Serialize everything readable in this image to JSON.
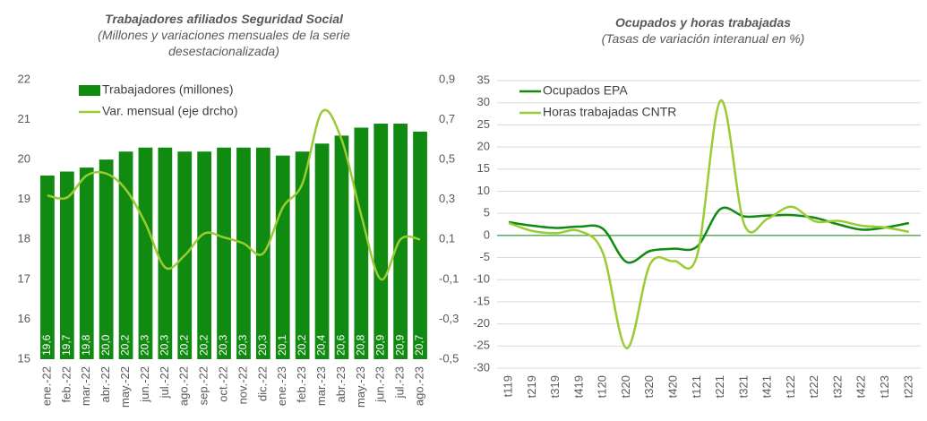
{
  "chart_data": [
    {
      "type": "bar",
      "title": "Trabajadores afiliados Seguridad Social",
      "subtitle": "(Millones y variaciones mensuales de la serie desestacionalizada)",
      "categories": [
        "ene.-22",
        "feb.-22",
        "mar.-22",
        "abr.-22",
        "may.-22",
        "jun.-22",
        "jul.-22",
        "ago.-22",
        "sep.-22",
        "oct.-22",
        "nov.-22",
        "dic.-22",
        "ene.-23",
        "feb.-23",
        "mar.-23",
        "abr.-23",
        "may.-23",
        "jun.-23",
        "jul.-23",
        "ago.-23"
      ],
      "series": [
        {
          "name": "Trabajadores (millones)",
          "color": "#108a10",
          "values": [
            19.6,
            19.7,
            19.8,
            20.0,
            20.2,
            20.3,
            20.3,
            20.2,
            20.2,
            20.3,
            20.3,
            20.3,
            20.1,
            20.2,
            20.4,
            20.6,
            20.8,
            20.9,
            20.9,
            20.7
          ],
          "value_labels": [
            "19,6",
            "19,7",
            "19,8",
            "20,0",
            "20,2",
            "20,3",
            "20,3",
            "20,2",
            "20,2",
            "20,3",
            "20,3",
            "20,3",
            "20,1",
            "20,2",
            "20,4",
            "20,6",
            "20,8",
            "20,9",
            "20,9",
            "20,7"
          ]
        },
        {
          "name": "Var. mensual (eje drcho)",
          "color": "#99cc33",
          "axis": "y2",
          "values": [
            0.32,
            0.31,
            0.42,
            0.43,
            0.35,
            0.18,
            -0.04,
            0.02,
            0.13,
            0.11,
            0.08,
            0.03,
            0.26,
            0.38,
            0.74,
            0.6,
            0.22,
            -0.1,
            0.1,
            0.1
          ]
        }
      ],
      "ylim": [
        15,
        22
      ],
      "yticks": [
        15,
        16,
        17,
        18,
        19,
        20,
        21,
        22
      ],
      "y2lim": [
        -0.5,
        0.9
      ],
      "y2ticks": [
        {
          "value": -0.5,
          "label": "-0,5"
        },
        {
          "value": -0.3,
          "label": "-0,3"
        },
        {
          "value": -0.1,
          "label": "-0,1"
        },
        {
          "value": 0.1,
          "label": "0,1"
        },
        {
          "value": 0.3,
          "label": "0,3"
        },
        {
          "value": 0.5,
          "label": "0,5"
        },
        {
          "value": 0.7,
          "label": "0,7"
        },
        {
          "value": 0.9,
          "label": "0,9"
        }
      ],
      "grid": false,
      "legend": "upper left"
    },
    {
      "type": "line",
      "title": "Ocupados y horas trabajadas",
      "subtitle": "(Tasas de variación interanual en %)",
      "categories": [
        "t119",
        "t219",
        "t319",
        "t419",
        "t120",
        "t220",
        "t320",
        "t420",
        "t121",
        "t221",
        "t321",
        "t421",
        "t122",
        "t222",
        "t322",
        "t422",
        "t123",
        "t223"
      ],
      "series": [
        {
          "name": "Ocupados EPA",
          "color": "#108a10",
          "values": [
            3.0,
            2.2,
            1.7,
            2.0,
            1.5,
            -6.0,
            -3.5,
            -3.0,
            -2.5,
            6.0,
            4.3,
            4.5,
            4.6,
            4.0,
            2.5,
            1.3,
            1.8,
            2.8
          ]
        },
        {
          "name": "Horas trabajadas CNTR",
          "color": "#99cc33",
          "values": [
            2.8,
            1.0,
            0.5,
            1.0,
            -4.0,
            -25.5,
            -6.5,
            -5.8,
            -4.5,
            30.5,
            2.5,
            3.8,
            6.5,
            3.2,
            3.3,
            2.2,
            1.8,
            0.8
          ]
        }
      ],
      "ylim": [
        -30,
        35
      ],
      "yticks": [
        -30,
        -25,
        -20,
        -15,
        -10,
        -5,
        0,
        5,
        10,
        15,
        20,
        25,
        30,
        35
      ],
      "grid": true,
      "legend": "upper left"
    }
  ]
}
